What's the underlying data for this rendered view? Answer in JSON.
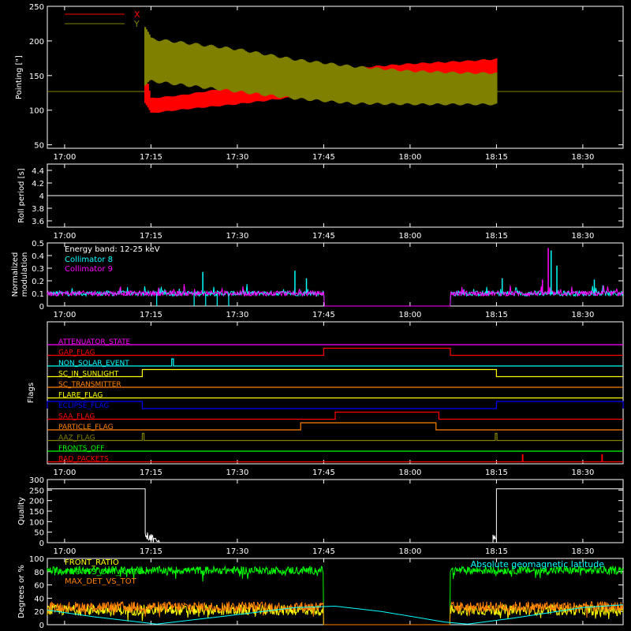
{
  "time_axis": {
    "ticks": [
      "17:00",
      "17:15",
      "17:30",
      "17:45",
      "18:00",
      "18:15",
      "18:30"
    ],
    "tick_minutes": [
      0,
      15,
      30,
      45,
      60,
      75,
      90
    ],
    "range_minutes": [
      -3,
      97
    ],
    "start_label": "17:00"
  },
  "chart_data": [
    {
      "id": "pointing",
      "type": "line",
      "ylabel": "Pointing [\"]",
      "ylim": [
        45,
        250
      ],
      "yticks": [
        50,
        100,
        150,
        200,
        250
      ],
      "grid": false,
      "legend_position": "top-left",
      "series": [
        {
          "name": "X",
          "color": "#ff0000",
          "baseline": 127,
          "active_start_min": 14,
          "active_end_min": 75,
          "envelope": [
            {
              "t": 14,
              "low": 110,
              "high": 160
            },
            {
              "t": 15,
              "low": 95,
              "high": 118
            },
            {
              "t": 20,
              "low": 100,
              "high": 122
            },
            {
              "t": 30,
              "low": 108,
              "high": 135
            },
            {
              "t": 40,
              "low": 118,
              "high": 150
            },
            {
              "t": 50,
              "low": 127,
              "high": 162
            },
            {
              "t": 60,
              "low": 135,
              "high": 168
            },
            {
              "t": 70,
              "low": 140,
              "high": 172
            },
            {
              "t": 75,
              "low": 140,
              "high": 175
            }
          ]
        },
        {
          "name": "Y",
          "color": "#808000",
          "baseline": 127,
          "active_start_min": 14,
          "active_end_min": 75,
          "envelope": [
            {
              "t": 14,
              "low": 135,
              "high": 225
            },
            {
              "t": 15,
              "low": 140,
              "high": 205
            },
            {
              "t": 20,
              "low": 135,
              "high": 200
            },
            {
              "t": 30,
              "low": 125,
              "high": 190
            },
            {
              "t": 40,
              "low": 115,
              "high": 175
            },
            {
              "t": 50,
              "low": 108,
              "high": 165
            },
            {
              "t": 60,
              "low": 107,
              "high": 158
            },
            {
              "t": 70,
              "low": 107,
              "high": 155
            },
            {
              "t": 75,
              "low": 107,
              "high": 155
            }
          ]
        }
      ]
    },
    {
      "id": "roll",
      "type": "line",
      "ylabel": "Roll period [s]",
      "ylim": [
        3.5,
        4.5
      ],
      "yticks": [
        3.6,
        3.8,
        4.0,
        4.2,
        4.4
      ],
      "series": [
        {
          "color": "#ffffff",
          "constant": 4.0
        }
      ]
    },
    {
      "id": "modulation",
      "type": "line",
      "ylabel_lines": [
        "Normalized",
        "modulation"
      ],
      "ylim": [
        0,
        0.5
      ],
      "yticks": [
        0.0,
        0.1,
        0.2,
        0.3,
        0.4,
        0.5
      ],
      "legend_position": "top-left",
      "annotation": "Energy band: 12-25 keV",
      "gap_minutes": [
        45,
        67
      ],
      "series": [
        {
          "name": "Collimator 8",
          "color": "#00ffff",
          "base": 0.1
        },
        {
          "name": "Collimator 9",
          "color": "#ff00ff",
          "base": 0.1
        }
      ],
      "spikes": [
        {
          "t": 24,
          "v": 0.27,
          "c": "#00ffff"
        },
        {
          "t": 40,
          "v": 0.28,
          "c": "#00ffff"
        },
        {
          "t": 42,
          "v": 0.22,
          "c": "#00ffff"
        },
        {
          "t": 76,
          "v": 0.22,
          "c": "#00ffff"
        },
        {
          "t": 83,
          "v": 0.21,
          "c": "#ff00ff"
        },
        {
          "t": 84,
          "v": 0.46,
          "c": "#ff00ff"
        },
        {
          "t": 84.5,
          "v": 0.44,
          "c": "#00ffff"
        },
        {
          "t": 85.5,
          "v": 0.32,
          "c": "#00ffff"
        },
        {
          "t": 92,
          "v": 0.21,
          "c": "#00ffff"
        }
      ],
      "dips": [
        16,
        22.5,
        24.5,
        26.5,
        28.5
      ]
    },
    {
      "id": "flags",
      "type": "line",
      "ylabel": "Flags",
      "rows": [
        {
          "name": "ATTENUATOR_STATE",
          "color": "#ff00ff",
          "on": []
        },
        {
          "name": "GAP_FLAG",
          "color": "#ff0000",
          "on": [
            [
              45,
              67
            ]
          ]
        },
        {
          "name": "NON_SOLAR_EVENT",
          "color": "#00ffff",
          "on": [
            [
              18.6,
              18.9
            ]
          ]
        },
        {
          "name": "SC_IN_SUNLIGHT",
          "color": "#ffff00",
          "on": [
            [
              13.5,
              75
            ]
          ]
        },
        {
          "name": "SC_TRANSMITTER",
          "color": "#ff8000",
          "on": []
        },
        {
          "name": "FLARE_FLAG",
          "color": "#ffff00",
          "on": []
        },
        {
          "name": "ECLIPSE_FLAG",
          "color": "#0000ff",
          "on": [
            [
              -3,
              13.5
            ],
            [
              75,
              97
            ]
          ]
        },
        {
          "name": "SAA_FLAG",
          "color": "#ff0000",
          "on": [
            [
              47,
              65
            ]
          ]
        },
        {
          "name": "PARTICLE_FLAG",
          "color": "#ff8000",
          "on": [
            [
              41,
              64.5
            ]
          ]
        },
        {
          "name": "AAZ_FLAG",
          "color": "#808000",
          "on": [
            [
              13.5,
              13.8
            ],
            [
              74.8,
              75.1
            ]
          ]
        },
        {
          "name": "FRONTS_OFF",
          "color": "#00ff00",
          "on": []
        },
        {
          "name": "BAD_PACKETS",
          "color": "#ff0000",
          "on": [
            [
              79.5,
              79.6
            ],
            [
              93.3,
              93.4
            ]
          ]
        }
      ]
    },
    {
      "id": "quality",
      "type": "line",
      "ylabel": "Quality",
      "ylim": [
        0,
        300
      ],
      "yticks": [
        0,
        50,
        100,
        150,
        200,
        250,
        300
      ],
      "series": [
        {
          "color": "#ffffff",
          "high": 256,
          "low_start_min": 14,
          "low_end_min": 75
        }
      ]
    },
    {
      "id": "degrees",
      "type": "line",
      "ylabel": "Degrees or %",
      "ylim": [
        0,
        100
      ],
      "yticks": [
        0,
        20,
        40,
        60,
        80,
        100
      ],
      "gap_minutes": [
        45,
        67
      ],
      "series": [
        {
          "name": "FRONT_RATIO",
          "color": "#ffff00",
          "level": 22
        },
        {
          "name": "FRONTS_OFF_RATIO",
          "color": "#00ff00",
          "level": 82
        },
        {
          "name": "MAX_DET_VS_TOT",
          "color": "#ff8000",
          "level": 27
        },
        {
          "name": "Absolute geomagnetic latitude",
          "color": "#00ffff",
          "points": [
            [
              -3,
              22
            ],
            [
              5,
              12
            ],
            [
              16,
              1
            ],
            [
              27,
              12
            ],
            [
              40,
              26
            ],
            [
              47,
              28
            ],
            [
              55,
              20
            ],
            [
              66,
              4
            ],
            [
              70,
              1
            ],
            [
              78,
              10
            ],
            [
              90,
              26
            ],
            [
              97,
              30
            ]
          ]
        }
      ]
    }
  ]
}
